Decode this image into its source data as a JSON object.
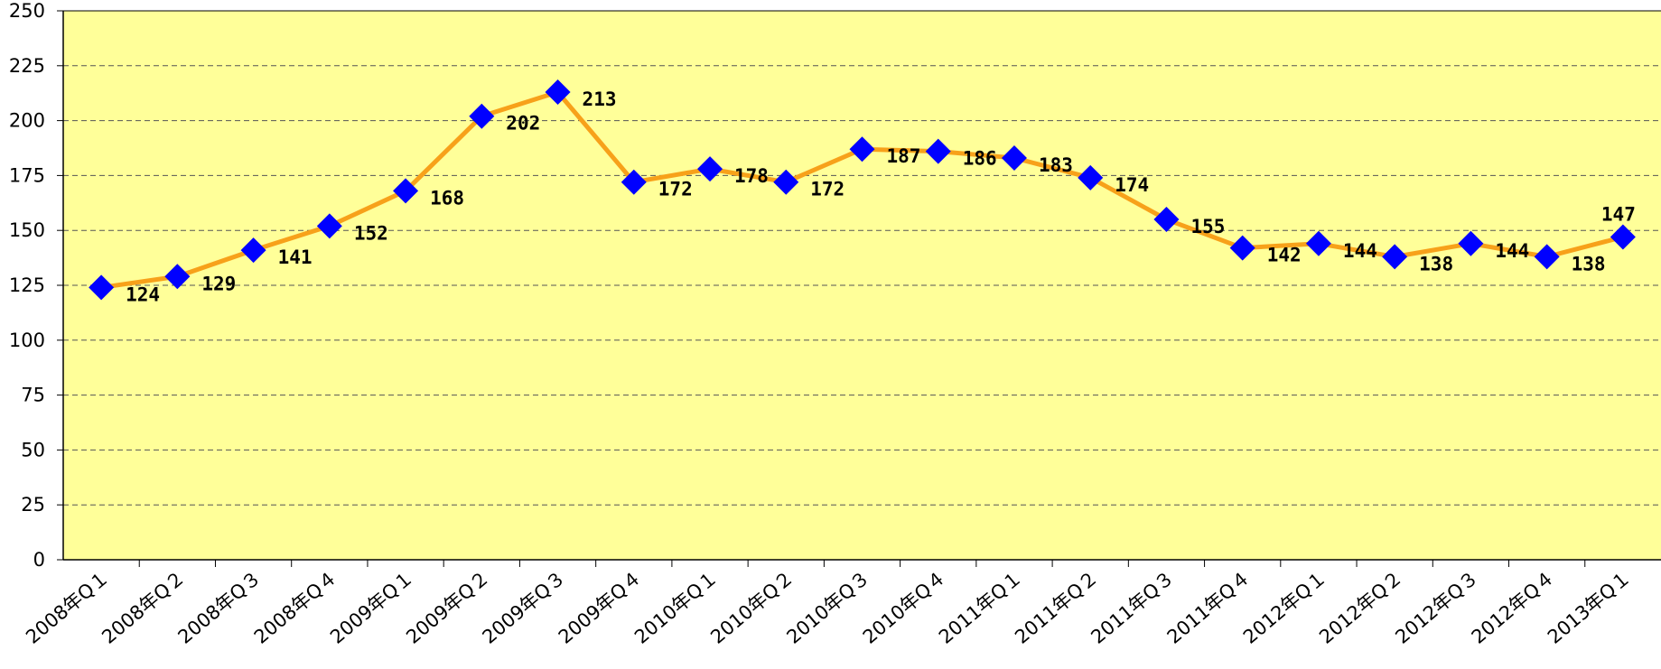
{
  "chart_data": {
    "type": "line",
    "categories": [
      "2008年Q１",
      "2008年Q２",
      "2008年Q３",
      "2008年Q４",
      "2009年Q１",
      "2009年Q２",
      "2009年Q３",
      "2009年Q４",
      "2010年Q１",
      "2010年Q２",
      "2010年Q３",
      "2010年Q４",
      "2011年Q１",
      "2011年Q２",
      "2011年Q３",
      "2011年Q４",
      "2012年Q１",
      "2012年Q２",
      "2012年Q３",
      "2012年Q４",
      "2013年Q１"
    ],
    "series": [
      {
        "color": "#f7a11a",
        "marker_color": "#0000ff",
        "values": [
          124,
          129,
          141,
          152,
          168,
          202,
          213,
          172,
          178,
          172,
          187,
          186,
          183,
          174,
          155,
          142,
          144,
          138,
          144,
          138,
          147
        ]
      }
    ],
    "ylim": [
      0,
      250
    ],
    "yticks": [
      0,
      25,
      50,
      75,
      100,
      125,
      150,
      175,
      200,
      225,
      250
    ],
    "grid": true,
    "background": "#ffff99"
  }
}
